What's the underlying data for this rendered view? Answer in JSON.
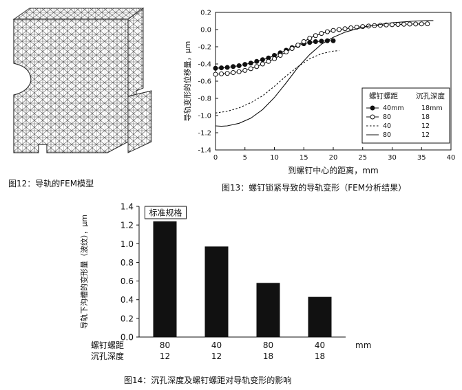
{
  "fig12": {
    "caption": "图12：导轨的FEM模型"
  },
  "fig13": {
    "caption": "图13：螺钉锁紧导致的导轨变形（FEM分析结果）"
  },
  "fig14": {
    "caption": "图14：沉孔深度及螺钉螺距对导轨变形的影响"
  },
  "chart_data": [
    {
      "id": "fig13",
      "type": "line",
      "xlabel": "到螺钉中心的距离，mm",
      "ylabel": "导轨变形的位移量，μm",
      "xlim": [
        0,
        40
      ],
      "ylim": [
        -1.4,
        0.2
      ],
      "xticks": [
        0,
        5,
        10,
        15,
        20,
        25,
        30,
        35,
        40
      ],
      "yticks": [
        0.2,
        0.0,
        -0.2,
        -0.4,
        -0.6,
        -0.8,
        -1.0,
        -1.2,
        -1.4
      ],
      "legend": {
        "placement": "bottom-right",
        "headers": [
          "螺钉螺距",
          "沉孔深度"
        ],
        "entries": [
          {
            "pitch": "40mm",
            "depth": "18mm"
          },
          {
            "pitch": "80",
            "depth": "18"
          },
          {
            "pitch": "40",
            "depth": "12"
          },
          {
            "pitch": "80",
            "depth": "12"
          }
        ]
      },
      "series": [
        {
          "style": "filled-dot",
          "x": [
            0,
            1,
            2,
            3,
            4,
            5,
            6,
            7,
            8,
            9,
            10,
            11,
            12,
            13,
            14,
            15,
            16,
            17,
            18,
            19,
            20
          ],
          "y": [
            -0.45,
            -0.445,
            -0.44,
            -0.43,
            -0.42,
            -0.405,
            -0.39,
            -0.37,
            -0.35,
            -0.33,
            -0.3,
            -0.27,
            -0.24,
            -0.21,
            -0.185,
            -0.165,
            -0.15,
            -0.14,
            -0.135,
            -0.13,
            -0.13
          ]
        },
        {
          "style": "open-dot",
          "x": [
            0,
            1,
            2,
            3,
            4,
            5,
            6,
            7,
            8,
            9,
            10,
            11,
            12,
            13,
            14,
            15,
            16,
            17,
            18,
            19,
            20,
            21,
            22,
            23,
            24,
            25,
            26,
            27,
            28,
            29,
            30,
            31,
            32,
            33,
            34,
            35,
            36
          ],
          "y": [
            -0.52,
            -0.515,
            -0.51,
            -0.5,
            -0.49,
            -0.475,
            -0.455,
            -0.43,
            -0.4,
            -0.37,
            -0.34,
            -0.3,
            -0.26,
            -0.22,
            -0.18,
            -0.14,
            -0.1,
            -0.07,
            -0.045,
            -0.025,
            -0.01,
            0.0,
            0.01,
            0.02,
            0.028,
            0.035,
            0.041,
            0.046,
            0.05,
            0.054,
            0.057,
            0.06,
            0.062,
            0.064,
            0.065,
            0.066,
            0.067
          ]
        },
        {
          "style": "dotted",
          "x": [
            0,
            2,
            4,
            6,
            8,
            10,
            12,
            14,
            16,
            18,
            20,
            21
          ],
          "y": [
            -0.97,
            -0.95,
            -0.91,
            -0.85,
            -0.77,
            -0.66,
            -0.54,
            -0.43,
            -0.34,
            -0.28,
            -0.25,
            -0.245
          ]
        },
        {
          "style": "solid",
          "x": [
            0,
            1,
            2,
            4,
            6,
            8,
            10,
            12,
            14,
            16,
            18,
            20,
            22,
            24,
            26,
            28,
            30,
            32,
            34,
            36,
            37
          ],
          "y": [
            -1.12,
            -1.125,
            -1.12,
            -1.09,
            -1.03,
            -0.93,
            -0.79,
            -0.62,
            -0.44,
            -0.29,
            -0.17,
            -0.09,
            -0.03,
            0.01,
            0.04,
            0.06,
            0.08,
            0.09,
            0.1,
            0.105,
            0.105
          ]
        }
      ]
    },
    {
      "id": "fig14",
      "type": "bar",
      "ylabel": "导轨下沟槽的变形量（波纹），μm",
      "ylim": [
        0,
        1.4
      ],
      "yticks": [
        0,
        0.2,
        0.4,
        0.6,
        0.8,
        1.0,
        1.2,
        1.4
      ],
      "unit": "mm",
      "row_labels": [
        "螺钉螺距",
        "沉孔深度"
      ],
      "categories": [
        {
          "pitch": "80",
          "depth": "12"
        },
        {
          "pitch": "40",
          "depth": "12"
        },
        {
          "pitch": "80",
          "depth": "18"
        },
        {
          "pitch": "40",
          "depth": "18"
        }
      ],
      "values": [
        1.24,
        0.97,
        0.58,
        0.43
      ],
      "annotation": "标准规格"
    }
  ]
}
